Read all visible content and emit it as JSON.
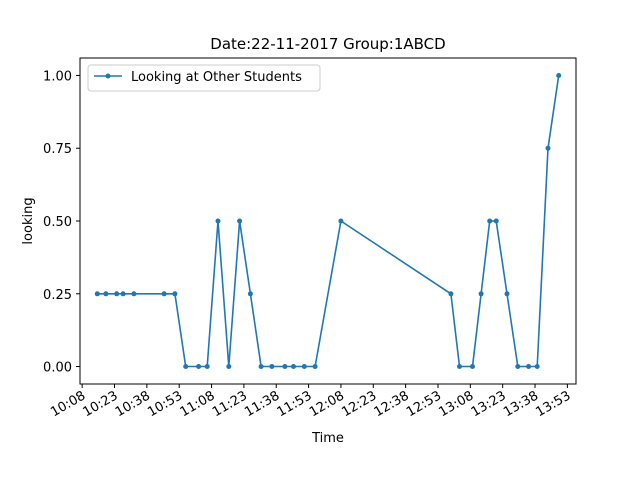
{
  "chart_data": {
    "type": "line",
    "title": "Date:22-11-2017  Group:1ABCD",
    "xlabel": "Time",
    "ylabel": "looking",
    "x_tick_labels": [
      "10:08",
      "10:23",
      "10:38",
      "10:53",
      "11:08",
      "11:23",
      "11:38",
      "11:53",
      "12:08",
      "12:23",
      "12:38",
      "12:53",
      "13:08",
      "13:23",
      "13:38",
      "13:53"
    ],
    "y_tick_labels": [
      "0.00",
      "0.25",
      "0.50",
      "0.75",
      "1.00"
    ],
    "xlim": [
      "10:07",
      "13:57"
    ],
    "ylim": [
      -0.06,
      1.06
    ],
    "grid": false,
    "legend_position": "top-left",
    "series": [
      {
        "name": "Looking at Other Students",
        "color": "#1f77b4",
        "marker": "point",
        "x": [
          "10:15",
          "10:19",
          "10:24",
          "10:27",
          "10:32",
          "10:46",
          "10:51",
          "10:56",
          "11:02",
          "11:06",
          "11:11",
          "11:16",
          "11:21",
          "11:26",
          "11:31",
          "11:36",
          "11:42",
          "11:46",
          "11:51",
          "11:56",
          "12:08",
          "12:59",
          "13:03",
          "13:09",
          "13:13",
          "13:17",
          "13:20",
          "13:25",
          "13:30",
          "13:35",
          "13:39",
          "13:44",
          "13:49"
        ],
        "values": [
          0.25,
          0.25,
          0.25,
          0.25,
          0.25,
          0.25,
          0.25,
          0.0,
          0.0,
          0.0,
          0.5,
          0.0,
          0.5,
          0.25,
          0.0,
          0.0,
          0.0,
          0.0,
          0.0,
          0.0,
          0.5,
          0.25,
          0.0,
          0.0,
          0.25,
          0.5,
          0.5,
          0.25,
          0.0,
          0.0,
          0.0,
          0.75,
          1.0
        ]
      }
    ]
  }
}
